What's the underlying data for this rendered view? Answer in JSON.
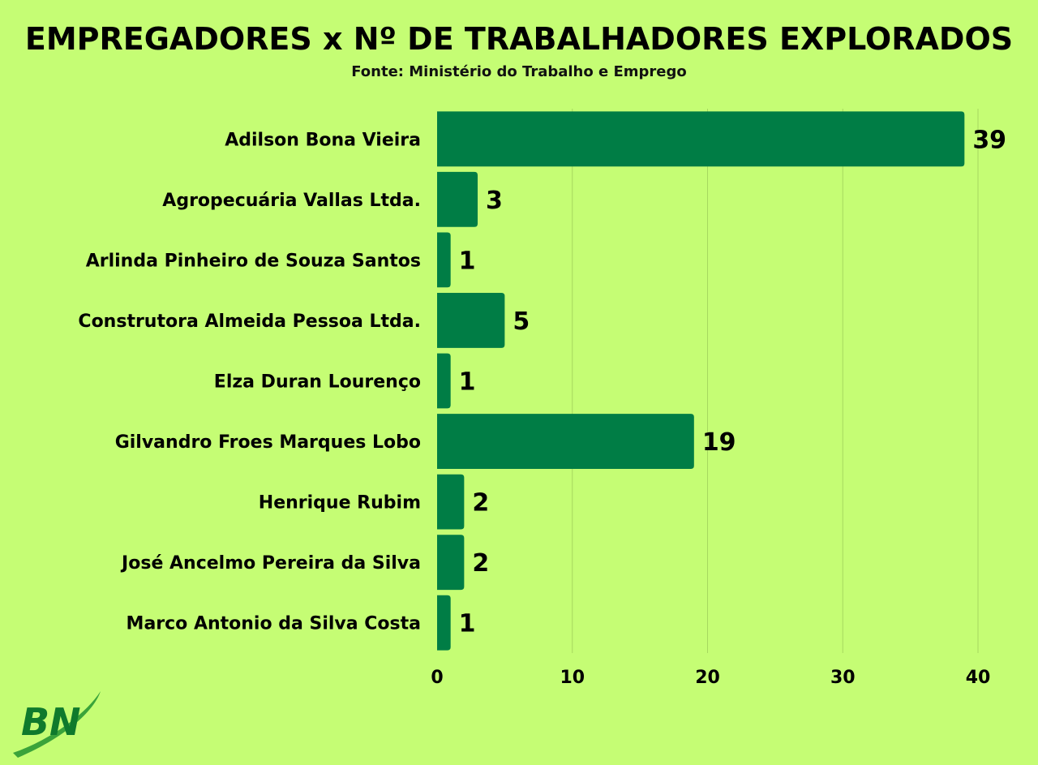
{
  "title": "EMPREGADORES x Nº DE TRABALHADORES EXPLORADOS",
  "subtitle": "Fonte: Ministério do Trabalho e Emprego",
  "logo": {
    "text": "BN"
  },
  "colors": {
    "background": "#c5fd74",
    "bar": "#007d45",
    "grid": "#a6d85f",
    "text": "#000000"
  },
  "chart_data": {
    "type": "bar",
    "orientation": "horizontal",
    "categories": [
      "Adilson Bona Vieira",
      "Agropecuária Vallas Ltda.",
      "Arlinda Pinheiro de Souza Santos",
      "Construtora Almeida Pessoa Ltda.",
      "Elza Duran Lourenço",
      "Gilvandro Froes Marques Lobo",
      "Henrique Rubim",
      "José Ancelmo Pereira da Silva",
      "Marco Antonio da Silva Costa"
    ],
    "values": [
      39,
      3,
      1,
      5,
      1,
      19,
      2,
      2,
      1
    ],
    "data_labels": [
      "39",
      "3",
      "1",
      "5",
      "1",
      "19",
      "2",
      "2",
      "1"
    ],
    "xticks": [
      "0",
      "10",
      "20",
      "30",
      "40"
    ],
    "xlim": [
      0,
      40
    ],
    "grid": true,
    "legend": "none"
  }
}
